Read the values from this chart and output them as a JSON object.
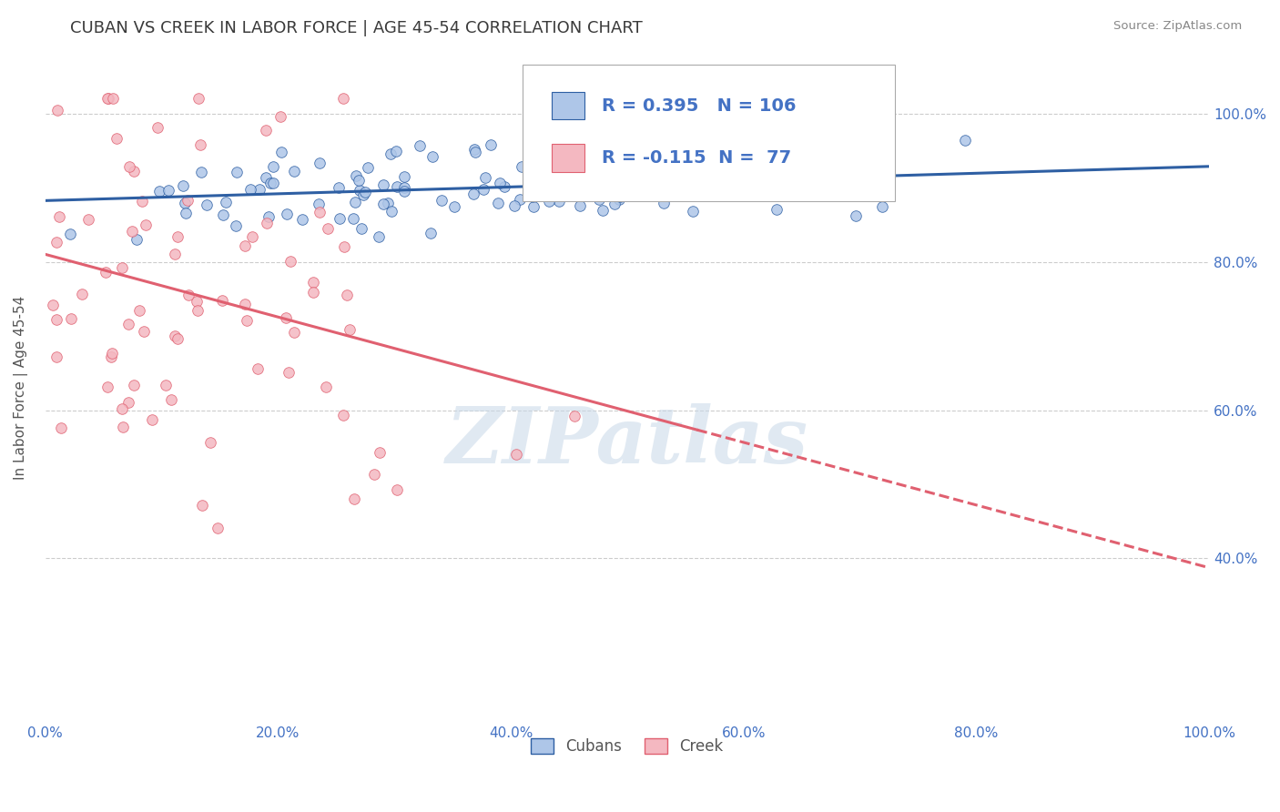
{
  "title": "CUBAN VS CREEK IN LABOR FORCE | AGE 45-54 CORRELATION CHART",
  "source": "Source: ZipAtlas.com",
  "ylabel": "In Labor Force | Age 45-54",
  "xlim": [
    0.0,
    1.0
  ],
  "ylim": [
    0.18,
    1.08
  ],
  "xticks": [
    0.0,
    0.2,
    0.4,
    0.6,
    0.8,
    1.0
  ],
  "xtick_labels": [
    "0.0%",
    "20.0%",
    "40.0%",
    "60.0%",
    "80.0%",
    "100.0%"
  ],
  "yticks": [
    0.4,
    0.6,
    0.8,
    1.0
  ],
  "ytick_labels": [
    "40.0%",
    "60.0%",
    "80.0%",
    "100.0%"
  ],
  "cuban_color": "#aec6e8",
  "creek_color": "#f4b8c1",
  "cuban_line_color": "#2e5fa3",
  "creek_line_color": "#e06070",
  "cuban_R": 0.395,
  "cuban_N": 106,
  "creek_R": -0.115,
  "creek_N": 77,
  "watermark": "ZIPatlas",
  "watermark_color": "#c8d8e8",
  "legend_labels": [
    "Cubans",
    "Creek"
  ],
  "background_color": "#ffffff",
  "grid_color": "#cccccc",
  "title_color": "#3a3a3a",
  "source_color": "#888888",
  "axis_color": "#4472c4",
  "ylabel_color": "#555555",
  "cuban_seed": 42,
  "creek_seed": 7
}
